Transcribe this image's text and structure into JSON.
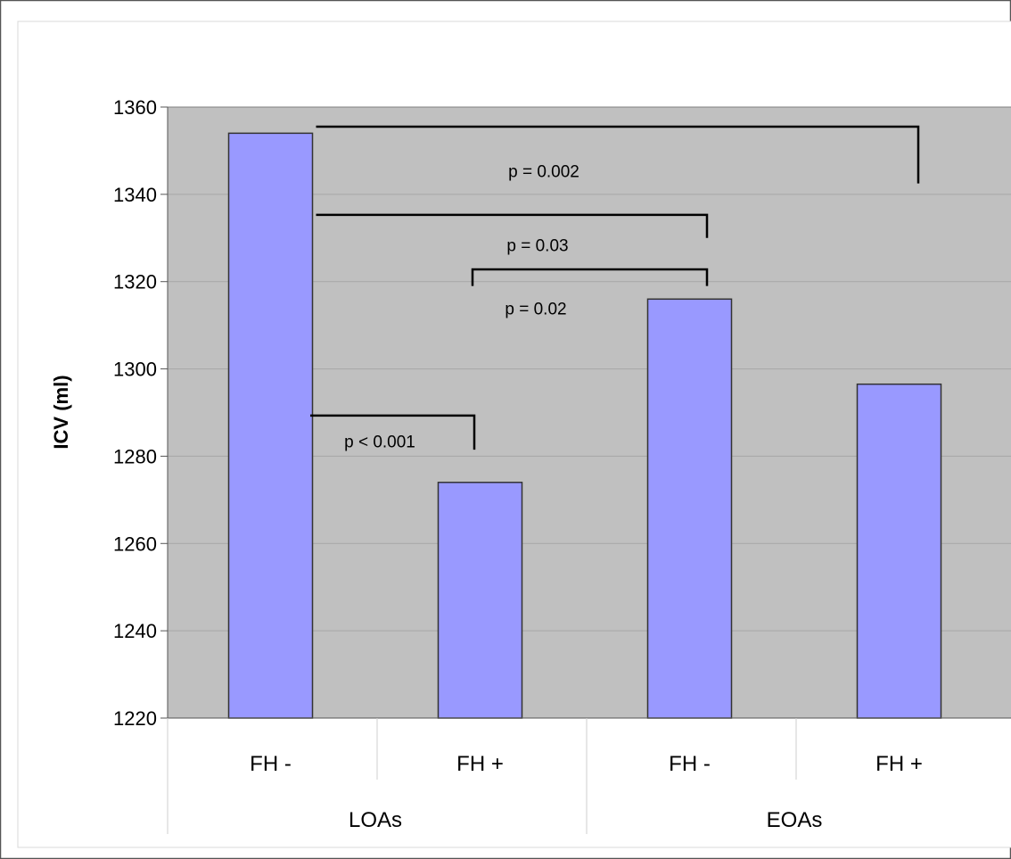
{
  "chart_data": {
    "type": "bar",
    "title": "",
    "xlabel": "",
    "ylabel": "ICV (ml)",
    "ylim": [
      1220,
      1360
    ],
    "yticks": [
      1220,
      1240,
      1260,
      1280,
      1300,
      1320,
      1340,
      1360
    ],
    "grid": true,
    "categories": [
      "FH -",
      "FH +",
      "FH -",
      "FH +"
    ],
    "groups": [
      {
        "label": "LOAs",
        "category_indices": [
          0,
          1
        ]
      },
      {
        "label": "EOAs",
        "category_indices": [
          2,
          3
        ]
      }
    ],
    "values": [
      1354,
      1274,
      1316,
      1296.5
    ],
    "comparisons": [
      {
        "from": 0,
        "to": 3,
        "p_label": "p = 0.002"
      },
      {
        "from": 0,
        "to": 2,
        "p_label": "p = 0.03"
      },
      {
        "from": 1,
        "to": 2,
        "p_label": "p = 0.02"
      },
      {
        "from": 0,
        "to": 1,
        "p_label": "p < 0.001"
      }
    ],
    "colors": {
      "bar_fill": "#9999ff",
      "bar_stroke": "#333333",
      "plot_bg": "#c0c0c0",
      "gridline": "#a6a6a6"
    }
  }
}
